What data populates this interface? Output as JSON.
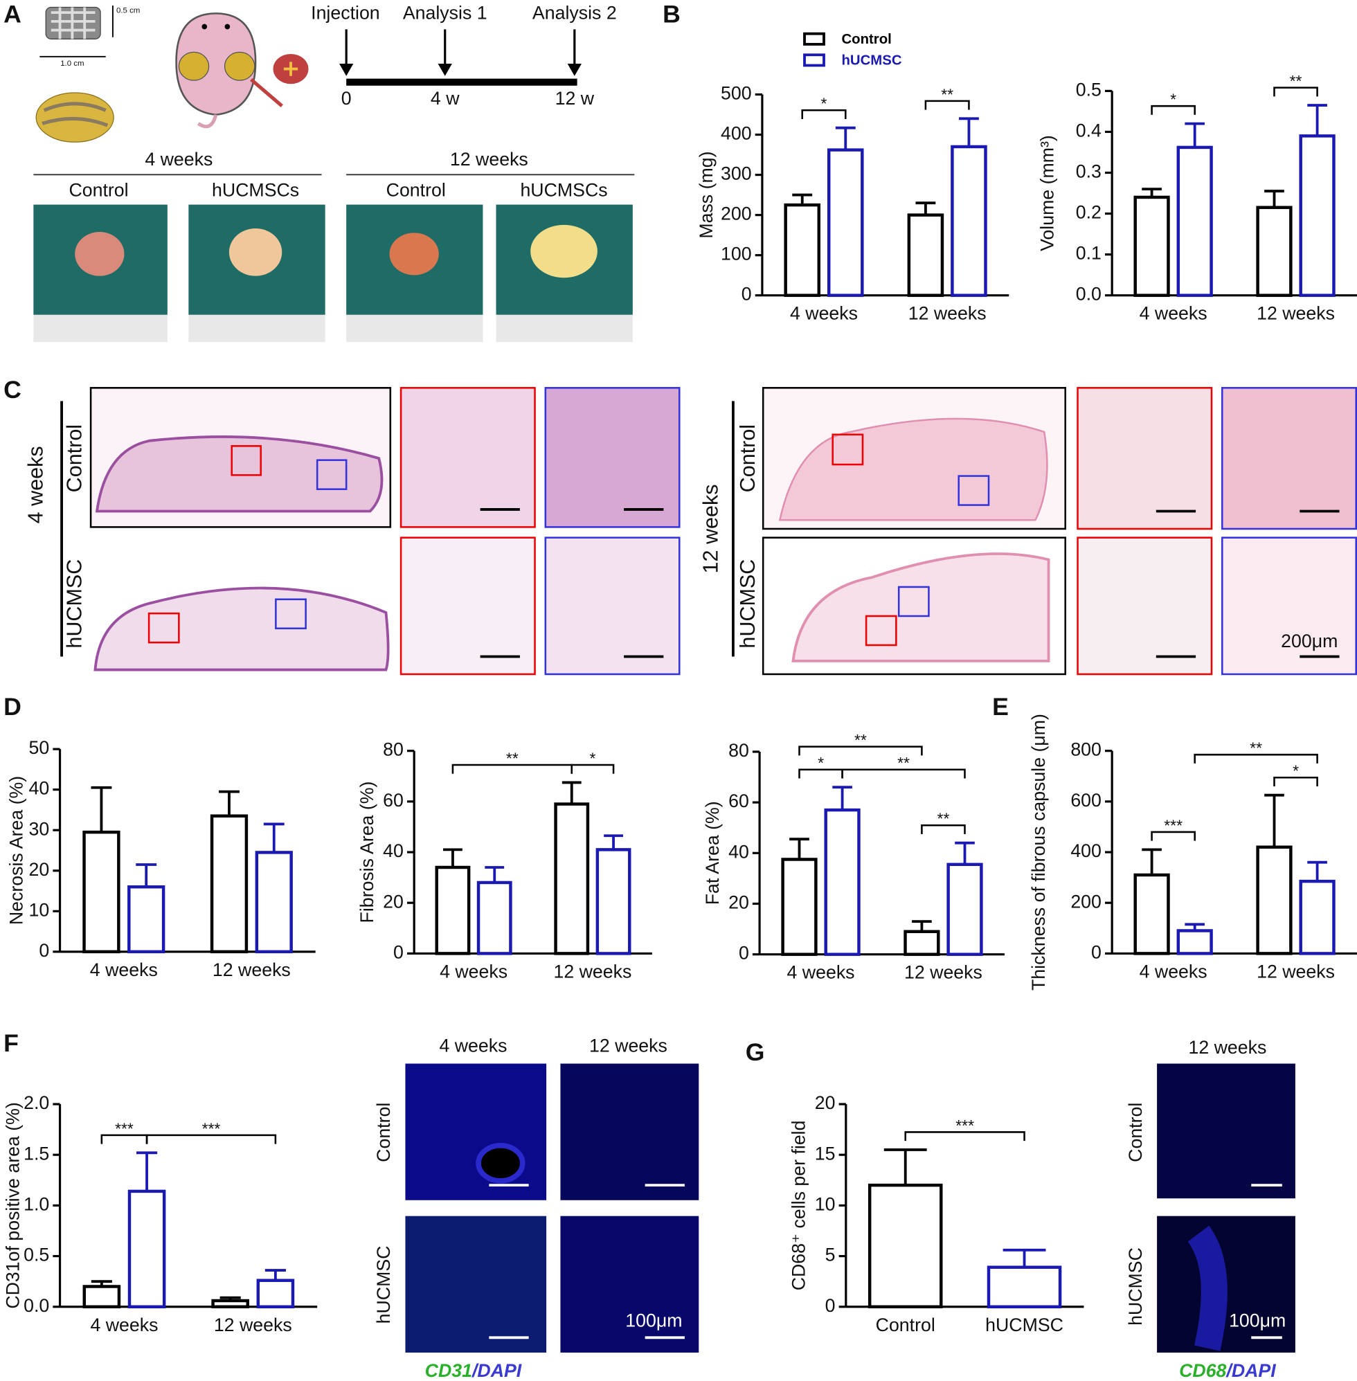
{
  "panels": [
    "A",
    "B",
    "C",
    "D",
    "E",
    "F",
    "G"
  ],
  "panel_a": {
    "timeline": [
      "Injection",
      "Analysis 1",
      "Analysis 2"
    ],
    "timeline_ticks": [
      "0",
      "4 w",
      "12 w"
    ],
    "scaffold_dims": [
      "0.5 cm",
      "1.0 cm"
    ],
    "groups": [
      "4 weeks",
      "12 weeks"
    ],
    "columns": [
      "Control",
      "hUCMSCs"
    ]
  },
  "panel_c": {
    "groups": [
      "4 weeks",
      "12 weeks"
    ],
    "rows": [
      "Control",
      "hUCMSC"
    ],
    "scale_bar": "200μm"
  },
  "panel_f": {
    "columns": [
      "4 weeks",
      "12 weeks"
    ],
    "rows": [
      "Control",
      "hUCMSC"
    ],
    "scale_bar": "100μm",
    "stain": [
      "CD31",
      "/DAPI"
    ]
  },
  "panel_g": {
    "column": "12 weeks",
    "rows": [
      "Control",
      "hUCMSC"
    ],
    "scale_bar": "100μm",
    "stain": [
      "CD68",
      "/DAPI"
    ]
  },
  "chart_data": [
    {
      "type": "bar",
      "ylabel": "Mass (mg)",
      "categories": [
        "4 weeks",
        "12 weeks"
      ],
      "legend": true,
      "series": [
        {
          "name": "Control",
          "color": "#000000",
          "values": [
            225,
            200
          ],
          "errors": [
            25,
            30
          ]
        },
        {
          "name": "hUCMSC",
          "color": "#1a1ab3",
          "values": [
            362,
            370
          ],
          "errors": [
            55,
            70
          ]
        }
      ],
      "ylim": [
        0,
        500
      ],
      "yticks": [
        0,
        100,
        200,
        300,
        400,
        500
      ],
      "significance": [
        {
          "label": "*",
          "from": [
            0,
            0
          ],
          "to": [
            0,
            1
          ]
        },
        {
          "label": "**",
          "from": [
            1,
            0
          ],
          "to": [
            1,
            1
          ]
        }
      ]
    },
    {
      "type": "bar",
      "ylabel": "Volume (mm³)",
      "categories": [
        "4 weeks",
        "12 weeks"
      ],
      "series": [
        {
          "color": "#000000",
          "values": [
            0.24,
            0.215
          ],
          "errors": [
            0.02,
            0.04
          ]
        },
        {
          "color": "#1a1ab3",
          "values": [
            0.362,
            0.39
          ],
          "errors": [
            0.058,
            0.075
          ]
        }
      ],
      "ylim": [
        0,
        0.5
      ],
      "yticks": [
        {
          "value": 0,
          "label": "0.0"
        },
        0.1,
        0.2,
        0.3,
        0.4,
        0.5
      ],
      "significance": [
        {
          "label": "*",
          "from": [
            0,
            0
          ],
          "to": [
            0,
            1
          ]
        },
        {
          "label": "**",
          "from": [
            1,
            0
          ],
          "to": [
            1,
            1
          ]
        }
      ]
    },
    {
      "type": "bar",
      "ylabel": "Necrosis Area (%)",
      "categories": [
        "4 weeks",
        "12 weeks"
      ],
      "series": [
        {
          "color": "#000000",
          "values": [
            29.5,
            33.5
          ],
          "errors": [
            11,
            6
          ]
        },
        {
          "color": "#1a1ab3",
          "values": [
            16,
            24.5
          ],
          "errors": [
            5.5,
            7
          ]
        }
      ],
      "ylim": [
        0,
        50
      ],
      "yticks": [
        0,
        10,
        20,
        30,
        40,
        50
      ],
      "significance": []
    },
    {
      "type": "bar",
      "ylabel": "Fibrosis Area (%)",
      "categories": [
        "4 weeks",
        "12 weeks"
      ],
      "series": [
        {
          "color": "#000000",
          "values": [
            34,
            59
          ],
          "errors": [
            7,
            8.5
          ]
        },
        {
          "color": "#1a1ab3",
          "values": [
            28,
            41
          ],
          "errors": [
            6,
            5.5
          ]
        }
      ],
      "ylim": [
        0,
        80
      ],
      "yticks": [
        0,
        20,
        40,
        60,
        80
      ],
      "significance": [
        {
          "label": "*",
          "from": [
            1,
            0
          ],
          "to": [
            1,
            1
          ]
        },
        {
          "label": "**",
          "from": [
            0,
            0
          ],
          "to": [
            1,
            0
          ]
        }
      ]
    },
    {
      "type": "bar",
      "ylabel": "Fat Area (%)",
      "categories": [
        "4 weeks",
        "12 weeks"
      ],
      "series": [
        {
          "color": "#000000",
          "values": [
            37.5,
            9
          ],
          "errors": [
            8,
            4
          ]
        },
        {
          "color": "#1a1ab3",
          "values": [
            57,
            35.5
          ],
          "errors": [
            9,
            8.5
          ]
        }
      ],
      "ylim": [
        0,
        80
      ],
      "yticks": [
        0,
        20,
        40,
        60,
        80
      ],
      "significance": [
        {
          "label": "*",
          "from": [
            0,
            0
          ],
          "to": [
            0,
            1
          ]
        },
        {
          "label": "**",
          "from": [
            1,
            0
          ],
          "to": [
            1,
            1
          ]
        },
        {
          "label": "**",
          "from": [
            0,
            0
          ],
          "to": [
            1,
            0
          ]
        },
        {
          "label": "**",
          "from": [
            0,
            1
          ],
          "to": [
            1,
            1
          ]
        }
      ]
    },
    {
      "type": "bar",
      "ylabel": "Thickness of fibrous capsule (μm)",
      "categories": [
        "4 weeks",
        "12 weeks"
      ],
      "series": [
        {
          "color": "#000000",
          "values": [
            310,
            420
          ],
          "errors": [
            100,
            205
          ]
        },
        {
          "color": "#1a1ab3",
          "values": [
            90,
            285
          ],
          "errors": [
            25,
            75
          ]
        }
      ],
      "ylim": [
        0,
        800
      ],
      "yticks": [
        0,
        200,
        400,
        600,
        800
      ],
      "significance": [
        {
          "label": "***",
          "from": [
            0,
            0
          ],
          "to": [
            0,
            1
          ]
        },
        {
          "label": "*",
          "from": [
            1,
            0
          ],
          "to": [
            1,
            1
          ]
        },
        {
          "label": "**",
          "from": [
            0,
            1
          ],
          "to": [
            1,
            1
          ]
        }
      ]
    },
    {
      "type": "bar",
      "ylabel": "CD31of positive area (%)",
      "categories": [
        "4 weeks",
        "12 weeks"
      ],
      "series": [
        {
          "color": "#000000",
          "values": [
            0.2,
            0.06
          ],
          "errors": [
            0.05,
            0.03
          ]
        },
        {
          "color": "#1a1ab3",
          "values": [
            1.14,
            0.26
          ],
          "errors": [
            0.38,
            0.1
          ]
        }
      ],
      "ylim": [
        0,
        2
      ],
      "yticks": [
        {
          "value": 0,
          "label": "0.0"
        },
        0.5,
        {
          "value": 1,
          "label": "1.0"
        },
        1.5,
        {
          "value": 2,
          "label": "2.0"
        }
      ],
      "significance": [
        {
          "label": "***",
          "from": [
            0,
            0
          ],
          "to": [
            0,
            1
          ]
        },
        {
          "label": "***",
          "from": [
            0,
            1
          ],
          "to": [
            1,
            1
          ]
        }
      ]
    },
    {
      "type": "bar",
      "ylabel": "CD68⁺ cells per field",
      "categories": [
        "Control",
        "hUCMSC"
      ],
      "series": [
        {
          "colors": [
            "#000000",
            "#1a1ab3"
          ],
          "values": [
            12,
            3.9
          ],
          "errors": [
            3.5,
            1.7
          ]
        }
      ],
      "ylim": [
        0,
        20
      ],
      "yticks": [
        0,
        5,
        10,
        15,
        20
      ],
      "significance": [
        {
          "label": "***",
          "from": [
            0,
            0
          ],
          "to": [
            1,
            0
          ]
        }
      ]
    }
  ]
}
